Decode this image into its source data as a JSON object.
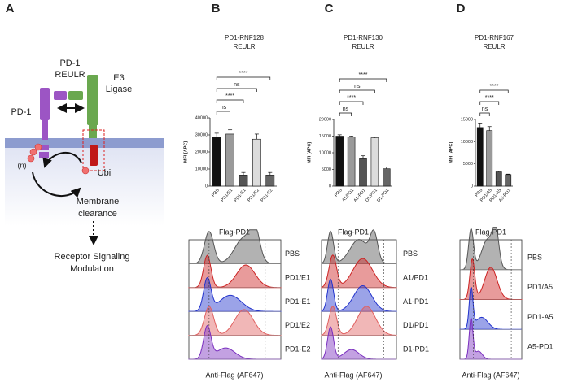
{
  "diagram": {
    "label": "A",
    "reulr": [
      "PD-1",
      "REULR"
    ],
    "ligase": [
      "E3",
      "Ligase"
    ],
    "receptor": "PD-1",
    "count": "(n)",
    "ubi": "Ubi",
    "clearance": [
      "Membrane",
      "clearance"
    ],
    "outcome": [
      "Receptor Signaling",
      "Modulation"
    ]
  },
  "chart_data": [
    {
      "type": "bar",
      "label": "B",
      "title": "PD1-RNF128",
      "subtitle": "REULR",
      "ylabel": "MFI [APC]",
      "categories": [
        "PBS",
        "PD1/E1",
        "PD1-E1",
        "PD1/E2",
        "PD1-E2"
      ],
      "values": [
        28500,
        30500,
        6500,
        27500,
        6500
      ],
      "errors": [
        2500,
        2500,
        1500,
        3000,
        1500
      ],
      "colors": [
        "#111111",
        "#9a9a9a",
        "#555555",
        "#dcdcdc",
        "#666666"
      ],
      "ylim": [
        0,
        40000
      ],
      "yticks": [
        0,
        10000,
        20000,
        30000,
        40000
      ],
      "significance": [
        {
          "groups": [
            0,
            1
          ],
          "label": "ns"
        },
        {
          "groups": [
            0,
            2
          ],
          "label": "****"
        },
        {
          "groups": [
            0,
            3
          ],
          "label": "ns"
        },
        {
          "groups": [
            0,
            4
          ],
          "label": "****"
        }
      ]
    },
    {
      "type": "bar",
      "label": "C",
      "title": "PD1-RNF130",
      "subtitle": "REULR",
      "ylabel": "MFI [APC]",
      "categories": [
        "PBS",
        "A1/PD1",
        "A1-PD1",
        "D1/PD1",
        "D1-PD1"
      ],
      "values": [
        15000,
        14700,
        8200,
        14500,
        5200
      ],
      "errors": [
        400,
        300,
        900,
        200,
        500
      ],
      "colors": [
        "#111111",
        "#9a9a9a",
        "#555555",
        "#dcdcdc",
        "#666666"
      ],
      "ylim": [
        0,
        20000
      ],
      "yticks": [
        0,
        5000,
        10000,
        15000,
        20000
      ],
      "significance": [
        {
          "groups": [
            0,
            1
          ],
          "label": "ns"
        },
        {
          "groups": [
            0,
            2
          ],
          "label": "****"
        },
        {
          "groups": [
            0,
            3
          ],
          "label": "ns"
        },
        {
          "groups": [
            0,
            4
          ],
          "label": "****"
        }
      ]
    },
    {
      "type": "bar",
      "label": "D",
      "title": "PD1-RNF167",
      "subtitle": "REULR",
      "ylabel": "MFI [APC]",
      "categories": [
        "PBS",
        "PD1/A5",
        "PD1-A5",
        "A5-PD1"
      ],
      "values": [
        13200,
        12500,
        3200,
        2600
      ],
      "errors": [
        1000,
        900,
        200,
        100
      ],
      "colors": [
        "#111111",
        "#9a9a9a",
        "#555555",
        "#666666"
      ],
      "ylim": [
        0,
        15000
      ],
      "yticks": [
        0,
        5000,
        10000,
        15000
      ],
      "significance": [
        {
          "groups": [
            0,
            1
          ],
          "label": "ns"
        },
        {
          "groups": [
            0,
            2
          ],
          "label": "****"
        },
        {
          "groups": [
            0,
            3
          ],
          "label": "****"
        }
      ]
    }
  ],
  "flow": [
    {
      "title": "Flag-PD1",
      "xlabel": "Anti-Flag (AF647)",
      "samples": [
        {
          "name": "PBS",
          "color": "#555555"
        },
        {
          "name": "PD1/E1",
          "color": "#cc2222"
        },
        {
          "name": "PD1-E1",
          "color": "#2233cc"
        },
        {
          "name": "PD1/E2",
          "color": "#e06060"
        },
        {
          "name": "PD1-E2",
          "color": "#7a2fbf"
        }
      ]
    },
    {
      "title": "Flag-PD1",
      "xlabel": "Anti-Flag (AF647)",
      "samples": [
        {
          "name": "PBS",
          "color": "#555555"
        },
        {
          "name": "A1/PD1",
          "color": "#cc2222"
        },
        {
          "name": "A1-PD1",
          "color": "#2233cc"
        },
        {
          "name": "D1/PD1",
          "color": "#e06060"
        },
        {
          "name": "D1-PD1",
          "color": "#7a2fbf"
        }
      ]
    },
    {
      "title": "Flag-PD1",
      "xlabel": "Anti-Flag (AF647)",
      "samples": [
        {
          "name": "PBS",
          "color": "#555555"
        },
        {
          "name": "PD1/A5",
          "color": "#cc2222"
        },
        {
          "name": "PD1-A5",
          "color": "#2233cc"
        },
        {
          "name": "A5-PD1",
          "color": "#7a2fbf"
        }
      ]
    }
  ]
}
